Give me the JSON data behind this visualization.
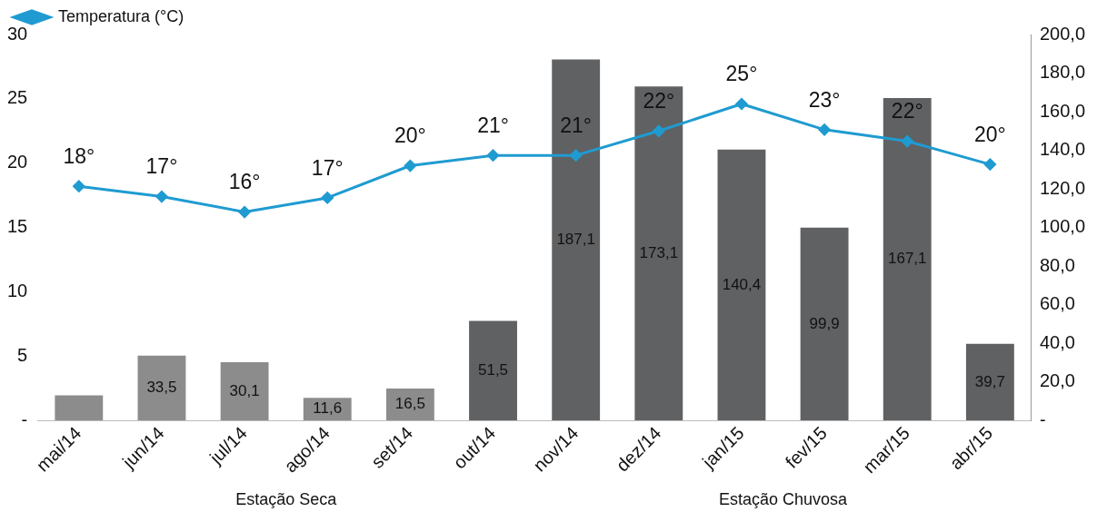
{
  "chart_data": {
    "type": "bar",
    "categories": [
      "mai/14",
      "jun/14",
      "jul/14",
      "ago/14",
      "set/14",
      "out/14",
      "nov/14",
      "dez/14",
      "jan/15",
      "fev/15",
      "mar/15",
      "abr/15"
    ],
    "series": [
      {
        "axis": "y2",
        "colors": [
          "#8c8c8c",
          "#8c8c8c",
          "#8c8c8c",
          "#8c8c8c",
          "#8c8c8c",
          "#606163",
          "#606163",
          "#606163",
          "#606163",
          "#606163",
          "#606163",
          "#606163"
        ],
        "values": [
          13,
          33.5,
          30.1,
          11.6,
          16.5,
          51.5,
          187.1,
          173.1,
          140.4,
          99.9,
          167.1,
          39.7
        ],
        "value_labels": [
          null,
          "33,5",
          "30,1",
          "11,6",
          "16,5",
          "51,5",
          "187,1",
          "173,1",
          "140,4",
          "99,9",
          "167,1",
          "39,7"
        ]
      },
      {
        "type": "line",
        "name": "Temperatura (°C)",
        "color": "#1f9bd1",
        "values": [
          18.2,
          17.4,
          16.2,
          17.3,
          19.8,
          20.6,
          20.6,
          22.5,
          24.6,
          22.6,
          21.7,
          19.9
        ],
        "value_labels": [
          "18°",
          "17°",
          "16°",
          "17°",
          "20°",
          "21°",
          "21°",
          "22°",
          "25°",
          "23°",
          "22°",
          "20°"
        ]
      }
    ],
    "ylim": [
      0,
      30
    ],
    "yticks": [
      {
        "value": 0,
        "label": "-"
      },
      5,
      10,
      15,
      20,
      25,
      30
    ],
    "y2lim": [
      0,
      200
    ],
    "y2ticks": [
      {
        "value": 0,
        "label": "-"
      },
      {
        "value": 20,
        "label": "20,0"
      },
      {
        "value": 40,
        "label": "40,0"
      },
      {
        "value": 60,
        "label": "60,0"
      },
      {
        "value": 80,
        "label": "80,0"
      },
      {
        "value": 100,
        "label": "100,0"
      },
      {
        "value": 120,
        "label": "120,0"
      },
      {
        "value": 140,
        "label": "140,0"
      },
      {
        "value": 160,
        "label": "160,0"
      },
      {
        "value": 180,
        "label": "180,0"
      },
      {
        "value": 200,
        "label": "200,0"
      }
    ],
    "annotations": [
      "Estação Seca",
      "Estação Chuvosa"
    ],
    "legend": "top left",
    "grid": false,
    "marker": "diamond"
  }
}
